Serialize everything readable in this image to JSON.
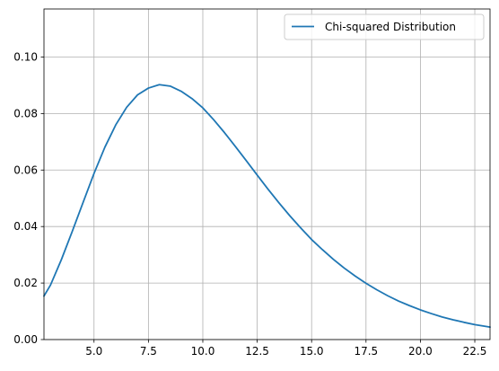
{
  "chart_data": {
    "type": "line",
    "title": "",
    "xlabel": "",
    "ylabel": "",
    "xlim": [
      2.7,
      23.2
    ],
    "ylim": [
      0.0,
      0.117
    ],
    "grid": true,
    "legend_placement": "top-right",
    "x_ticks": [
      5.0,
      7.5,
      10.0,
      12.5,
      15.0,
      17.5,
      20.0,
      22.5
    ],
    "x_tick_labels": [
      "5.0",
      "7.5",
      "10.0",
      "12.5",
      "15.0",
      "17.5",
      "20.0",
      "22.5"
    ],
    "y_ticks": [
      0.0,
      0.02,
      0.04,
      0.06,
      0.08,
      0.1
    ],
    "y_tick_labels": [
      "0.00",
      "0.02",
      "0.04",
      "0.06",
      "0.08",
      "0.10"
    ],
    "series": [
      {
        "name": "Chi-squared Distribution",
        "color": "#1f77b4",
        "x": [
          2.7,
          3.0,
          3.5,
          4.0,
          4.5,
          5.0,
          5.5,
          6.0,
          6.5,
          7.0,
          7.5,
          8.0,
          8.5,
          9.0,
          9.5,
          10.0,
          10.5,
          11.0,
          11.5,
          12.0,
          12.5,
          13.0,
          13.5,
          14.0,
          14.5,
          15.0,
          15.5,
          16.0,
          16.5,
          17.0,
          17.5,
          18.0,
          18.5,
          19.0,
          19.5,
          20.0,
          20.5,
          21.0,
          21.5,
          22.0,
          22.5,
          23.2
        ],
        "values": [
          0.0154,
          0.0193,
          0.0283,
          0.0383,
          0.0486,
          0.0588,
          0.0681,
          0.076,
          0.0822,
          0.0866,
          0.089,
          0.0902,
          0.0897,
          0.0879,
          0.0853,
          0.082,
          0.0778,
          0.0732,
          0.0683,
          0.0633,
          0.0582,
          0.0532,
          0.0484,
          0.0438,
          0.0395,
          0.0354,
          0.0318,
          0.0284,
          0.0253,
          0.0225,
          0.0199,
          0.0176,
          0.0155,
          0.0136,
          0.012,
          0.0105,
          0.0092,
          0.008,
          0.007,
          0.0061,
          0.0053,
          0.0044
        ]
      }
    ]
  }
}
